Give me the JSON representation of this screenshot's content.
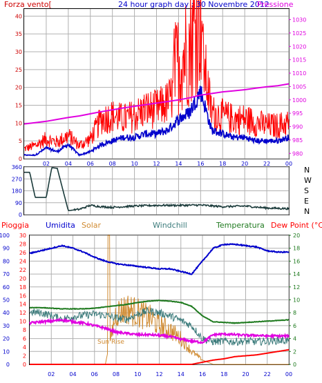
{
  "header": {
    "wind_label": "Forza vento[",
    "title": "24 hour graph day : 30 Novembre 2012",
    "pressure_label": "Pressione"
  },
  "bottom_labels": {
    "rain": "Pioggia",
    "humidity": "Umidita",
    "solar": "Solar",
    "windchill": "Windchill",
    "temperature": "Temperatura",
    "dewpoint": "Dew Point (°C)",
    "sunrise": "Sun Rise"
  },
  "direction_letters": [
    "N",
    "W",
    "S",
    "E",
    "N"
  ],
  "colors": {
    "wind_gust": "#ff0000",
    "wind_avg": "#0000cc",
    "pressure": "#e000e0",
    "direction": "#1a3a3a",
    "humidity": "#0000cc",
    "solar": "#d08a30",
    "windchill": "#3a7a7a",
    "temperature": "#1f7a1f",
    "dewpoint": "#e000e0",
    "rain": "#ff0000",
    "left_axis_wind": "#cc0000",
    "left_axis_hum": "#0000cc",
    "left_axis_rain": "#ff0000",
    "left_axis_solar": "#d08a30",
    "right_axis_press": "#e000e0",
    "right_axis_temp": "#1f7a1f"
  },
  "chart_data": [
    {
      "type": "line",
      "panel": "wind",
      "x_ticks": [
        "02",
        "04",
        "06",
        "08",
        "10",
        "12",
        "14",
        "16",
        "18",
        "20",
        "22",
        "00"
      ],
      "y_left_ticks": [
        0,
        5,
        10,
        15,
        20,
        25,
        30,
        35,
        40
      ],
      "y_right_ticks": [
        980,
        985,
        990,
        995,
        1000,
        1005,
        1010,
        1015,
        1020,
        1025,
        1030
      ],
      "x": [
        0,
        1,
        2,
        3,
        4,
        5,
        6,
        7,
        8,
        9,
        10,
        11,
        12,
        13,
        14,
        15,
        16,
        17,
        18,
        19,
        20,
        21,
        22,
        23,
        24
      ],
      "series": [
        {
          "name": "Forza vento",
          "axis": "left",
          "values": [
            3,
            4,
            6,
            5,
            7,
            4,
            6,
            12,
            13,
            12,
            13,
            15,
            15,
            17,
            22,
            26,
            35,
            14,
            13,
            12,
            12,
            11,
            10,
            10,
            11
          ]
        },
        {
          "name": "",
          "axis": "left",
          "values": [
            1,
            1,
            3,
            2,
            4,
            1,
            2,
            4,
            5,
            6,
            6,
            7,
            7,
            8,
            11,
            13,
            19,
            8,
            7,
            6,
            6,
            5,
            5,
            5,
            6
          ]
        },
        {
          "name": "Pressione",
          "axis": "right",
          "values": [
            991,
            991.5,
            992,
            992.7,
            993.4,
            994,
            994.8,
            995.6,
            996.3,
            997,
            997.6,
            998.2,
            998.8,
            999.4,
            1000,
            1000.8,
            1001.8,
            1002.4,
            1003,
            1003.4,
            1003.8,
            1004.4,
            1004.9,
            1005.3,
            1006
          ]
        }
      ]
    },
    {
      "type": "line",
      "panel": "direction",
      "x_ticks": [
        "02",
        "04",
        "06",
        "08",
        "10",
        "12",
        "14",
        "16",
        "18",
        "20",
        "22",
        "00"
      ],
      "y_ticks": [
        0,
        90,
        180,
        270,
        360
      ],
      "x": [
        0,
        0.5,
        1.0,
        1.4,
        2.0,
        2.5,
        3.0,
        4.0,
        5.0,
        6.0,
        7.0,
        8.0,
        10.0,
        12.0,
        14.0,
        16.0,
        18.0,
        20.0,
        22.0,
        24.0
      ],
      "series": [
        {
          "name": "",
          "values": [
            320,
            320,
            130,
            130,
            130,
            355,
            350,
            30,
            40,
            70,
            60,
            55,
            65,
            70,
            70,
            72,
            60,
            65,
            50,
            45
          ]
        }
      ]
    },
    {
      "type": "line",
      "panel": "weather",
      "x_ticks": [
        "02",
        "04",
        "06",
        "08",
        "10",
        "12",
        "14",
        "16",
        "18",
        "20",
        "22",
        "00"
      ],
      "y_hum_ticks": [
        0,
        10,
        20,
        30,
        40,
        50,
        60,
        70,
        80,
        90,
        100
      ],
      "y_rain_ticks": [
        0,
        2,
        4,
        6,
        8,
        10,
        12,
        14,
        16,
        18,
        20,
        22,
        24,
        26,
        28,
        30
      ],
      "y_temp_ticks": [
        0,
        2,
        4,
        6,
        8,
        10,
        12,
        14,
        16,
        18,
        20
      ],
      "x": [
        0,
        1,
        2,
        3,
        4,
        5,
        6,
        7,
        8,
        9,
        10,
        11,
        12,
        13,
        14,
        15,
        16,
        17,
        18,
        19,
        20,
        21,
        22,
        23,
        24
      ],
      "series": [
        {
          "name": "Umidita",
          "axis": "humidity",
          "values": [
            86,
            88,
            90,
            92,
            90,
            87,
            83,
            80,
            78,
            77,
            76,
            75,
            74,
            74,
            72,
            70,
            80,
            90,
            93,
            93,
            92,
            91,
            88,
            87,
            87
          ]
        },
        {
          "name": "Temperatura",
          "axis": "temp",
          "values": [
            8.8,
            8.8,
            8.7,
            8.6,
            8.6,
            8.6,
            8.7,
            8.9,
            9.1,
            9.3,
            9.6,
            9.8,
            9.9,
            9.8,
            9.6,
            9.0,
            7.5,
            6.6,
            6.5,
            6.4,
            6.5,
            6.6,
            6.7,
            6.8,
            6.9
          ]
        },
        {
          "name": "Windchill",
          "axis": "temp",
          "values": [
            8.1,
            8.0,
            7.6,
            7.0,
            7.4,
            7.6,
            7.8,
            7.6,
            7.2,
            7.0,
            7.8,
            8.3,
            8.0,
            7.5,
            6.8,
            6.0,
            4.0,
            3.5,
            3.6,
            3.5,
            3.6,
            3.5,
            3.6,
            3.7,
            3.7
          ]
        },
        {
          "name": "Dew Point",
          "axis": "temp",
          "values": [
            6.4,
            6.6,
            6.7,
            6.9,
            6.6,
            6.4,
            6.0,
            5.6,
            5.0,
            4.8,
            4.6,
            4.6,
            4.5,
            4.3,
            3.9,
            3.6,
            3.4,
            4.6,
            4.7,
            4.6,
            4.5,
            4.5,
            4.4,
            4.4,
            4.4
          ]
        },
        {
          "name": "Solar",
          "axis": "rain",
          "values": [
            0,
            0,
            0,
            0,
            0,
            0,
            0,
            0,
            12,
            13,
            12,
            11,
            9,
            8,
            6,
            3,
            1,
            0,
            0,
            0,
            0,
            0,
            0,
            0,
            0
          ]
        },
        {
          "name": "Pioggia",
          "axis": "rain",
          "values": [
            0,
            0,
            0,
            0,
            0,
            0,
            0,
            0,
            0,
            0,
            0,
            0,
            0,
            0,
            0,
            0,
            0.5,
            1.0,
            1.3,
            1.8,
            2.0,
            2.2,
            2.6,
            3.0,
            3.4
          ]
        }
      ],
      "annotations": [
        {
          "text": "Sun Rise",
          "x": 7.3
        }
      ]
    }
  ]
}
